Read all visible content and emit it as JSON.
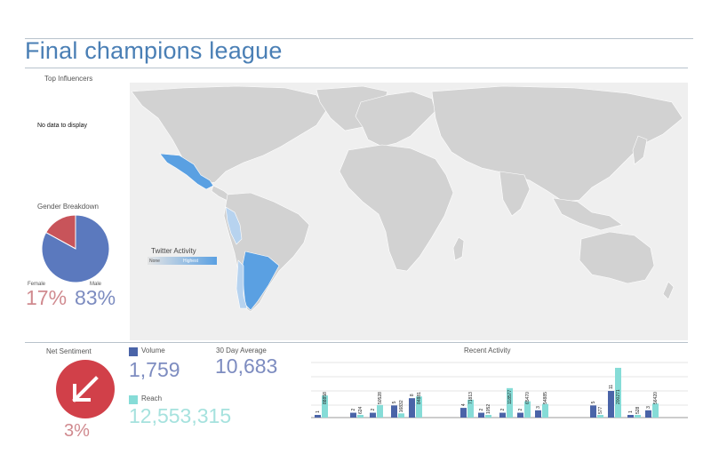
{
  "header": {
    "title": "Final champions league"
  },
  "influencers": {
    "title": "Top Influencers",
    "empty": "No data to display"
  },
  "gender": {
    "title": "Gender Breakdown",
    "female_label": "Female",
    "male_label": "Male",
    "female_pct": "17%",
    "male_pct": "83%",
    "female_share": 17,
    "male_share": 83,
    "female_color": "#c8545a",
    "male_color": "#5b79be"
  },
  "map": {
    "legend_title": "Twitter Activity",
    "legend_low": "None",
    "legend_high": "Highest",
    "land_color": "#d2d2d2",
    "active_color": "#5aa0e2"
  },
  "sentiment": {
    "title": "Net Sentiment",
    "value": "3%",
    "icon": "arrow-down-left-icon",
    "color": "#d14049"
  },
  "volume": {
    "label": "Volume",
    "value": "1,759",
    "color": "#4a64a8"
  },
  "average": {
    "label": "30 Day Average",
    "value": "10,683"
  },
  "reach": {
    "label": "Reach",
    "value": "12,553,315",
    "color": "#86dcd7"
  },
  "chart_data": {
    "type": "bar",
    "title": "Recent Activity",
    "series": [
      {
        "name": "Volume",
        "values": [
          1,
          2,
          2,
          5,
          8,
          4,
          2,
          2,
          2,
          3,
          5,
          11,
          1,
          3
        ]
      },
      {
        "name": "Reach",
        "values": [
          88858,
          624,
          50528,
          16832,
          84881,
          71813,
          1052,
          118577,
          65470,
          54885,
          577,
          200271,
          528,
          56420
        ]
      }
    ]
  }
}
